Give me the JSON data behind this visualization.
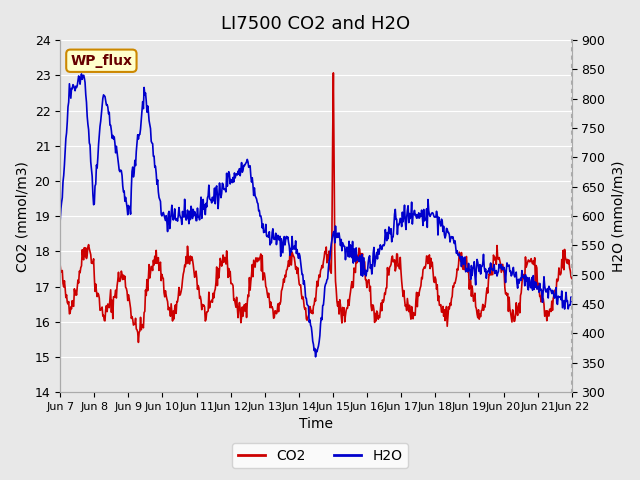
{
  "title": "LI7500 CO2 and H2O",
  "xlabel": "Time",
  "ylabel_left": "CO2 (mmol/m3)",
  "ylabel_right": "H2O (mmol/m3)",
  "ylim_left": [
    14.0,
    24.0
  ],
  "ylim_right": [
    300,
    900
  ],
  "yticks_left": [
    14.0,
    15.0,
    16.0,
    17.0,
    18.0,
    19.0,
    20.0,
    21.0,
    22.0,
    23.0,
    24.0
  ],
  "yticks_right": [
    300,
    350,
    400,
    450,
    500,
    550,
    600,
    650,
    700,
    750,
    800,
    850,
    900
  ],
  "xtick_labels": [
    "Jun 7",
    "Jun 8",
    "Jun 9",
    "Jun 10",
    "Jun 11",
    "Jun 12",
    "Jun 13",
    "Jun 14",
    "Jun 15",
    "Jun 16",
    "Jun 17",
    "Jun 18",
    "Jun 19",
    "Jun 20",
    "Jun 21",
    "Jun 22"
  ],
  "co2_color": "#cc0000",
  "h2o_color": "#0000cc",
  "background_color": "#e8e8e8",
  "plot_bg_color": "#e8e8e8",
  "grid_color": "#ffffff",
  "annotation_text": "WP_flux",
  "annotation_bg": "#ffffcc",
  "annotation_border": "#cc8800",
  "legend_co2": "CO2",
  "legend_h2o": "H2O",
  "title_fontsize": 13,
  "axis_label_fontsize": 10,
  "tick_fontsize": 9,
  "line_width": 1.2,
  "n_days": 15,
  "points_per_day": 48
}
